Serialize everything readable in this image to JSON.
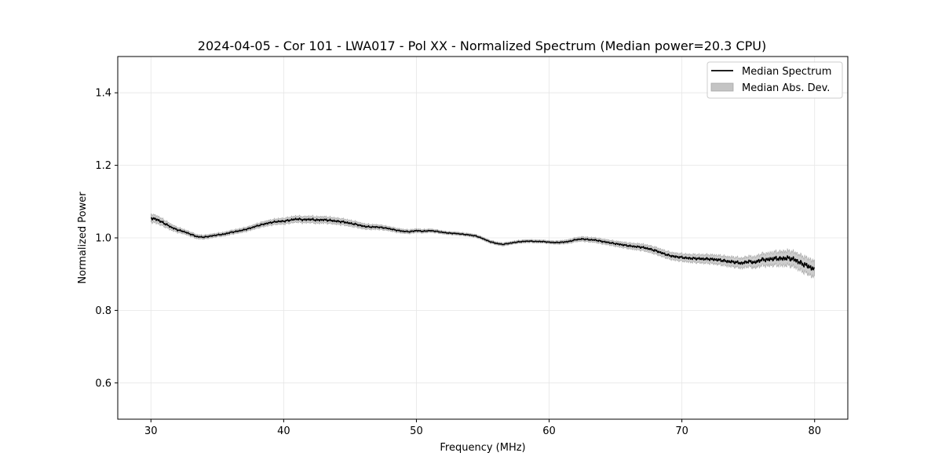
{
  "chart_data": {
    "type": "line",
    "title": "2024-04-05 - Cor 101 - LWA017 - Pol XX - Normalized Spectrum (Median power=20.3 CPU)",
    "xlabel": "Frequency (MHz)",
    "ylabel": "Normalized Power",
    "xlim": [
      27.5,
      82.5
    ],
    "ylim": [
      0.5,
      1.5
    ],
    "xticks": [
      30,
      40,
      50,
      60,
      70,
      80
    ],
    "xtick_labels": [
      "30",
      "40",
      "50",
      "60",
      "70",
      "80"
    ],
    "yticks": [
      0.6,
      0.8,
      1.0,
      1.2,
      1.4
    ],
    "ytick_labels": [
      "0.6",
      "0.8",
      "1.0",
      "1.2",
      "1.4"
    ],
    "grid": true,
    "legend_position": "top-right",
    "legend": [
      "Median Spectrum",
      "Median Abs. Dev."
    ],
    "series": [
      {
        "name": "Median Spectrum",
        "color": "#000000",
        "x": [
          30,
          30.5,
          31,
          31.5,
          32,
          32.5,
          33,
          33.5,
          34,
          34.5,
          35,
          35.5,
          36,
          36.5,
          37,
          37.5,
          38,
          38.5,
          39,
          39.5,
          40,
          40.5,
          41,
          41.5,
          42,
          42.5,
          43,
          43.5,
          44,
          44.5,
          45,
          45.5,
          46,
          46.5,
          47,
          47.5,
          48,
          48.5,
          49,
          49.5,
          50,
          50.5,
          51,
          51.5,
          52,
          52.5,
          53,
          53.5,
          54,
          54.5,
          55,
          55.5,
          56,
          56.5,
          57,
          57.5,
          58,
          58.5,
          59,
          59.5,
          60,
          60.5,
          61,
          61.5,
          62,
          62.5,
          63,
          63.5,
          64,
          64.5,
          65,
          65.5,
          66,
          66.5,
          67,
          67.5,
          68,
          68.5,
          69,
          69.5,
          70,
          70.5,
          71,
          71.5,
          72,
          72.5,
          73,
          73.5,
          74,
          74.5,
          75,
          75.5,
          76,
          76.5,
          77,
          77.5,
          78,
          78.5,
          79,
          79.5,
          80
        ],
        "y": [
          1.055,
          1.05,
          1.04,
          1.03,
          1.022,
          1.017,
          1.01,
          1.003,
          1.002,
          1.005,
          1.008,
          1.01,
          1.015,
          1.018,
          1.022,
          1.027,
          1.033,
          1.038,
          1.042,
          1.045,
          1.046,
          1.049,
          1.052,
          1.05,
          1.051,
          1.049,
          1.05,
          1.048,
          1.046,
          1.044,
          1.04,
          1.037,
          1.032,
          1.03,
          1.03,
          1.028,
          1.025,
          1.021,
          1.018,
          1.017,
          1.02,
          1.018,
          1.02,
          1.018,
          1.015,
          1.013,
          1.012,
          1.01,
          1.008,
          1.005,
          0.998,
          0.99,
          0.985,
          0.982,
          0.985,
          0.988,
          0.99,
          0.991,
          0.99,
          0.99,
          0.988,
          0.987,
          0.988,
          0.99,
          0.995,
          0.997,
          0.995,
          0.994,
          0.99,
          0.987,
          0.984,
          0.981,
          0.978,
          0.976,
          0.974,
          0.97,
          0.965,
          0.958,
          0.952,
          0.948,
          0.946,
          0.944,
          0.943,
          0.942,
          0.942,
          0.94,
          0.938,
          0.935,
          0.933,
          0.93,
          0.935,
          0.932,
          0.94,
          0.94,
          0.943,
          0.943,
          0.944,
          0.94,
          0.93,
          0.922,
          0.912
        ]
      },
      {
        "name": "Median Abs. Dev.",
        "color": "#c4c4c4",
        "x": [
          30,
          32.5,
          35,
          37.5,
          40,
          42.5,
          45,
          47.5,
          50,
          52.5,
          55,
          57.5,
          60,
          62.5,
          65,
          67.5,
          70,
          72.5,
          75,
          77.5,
          80
        ],
        "y_half_width": [
          0.011,
          0.006,
          0.005,
          0.006,
          0.008,
          0.009,
          0.008,
          0.006,
          0.005,
          0.004,
          0.004,
          0.004,
          0.004,
          0.006,
          0.007,
          0.009,
          0.01,
          0.012,
          0.014,
          0.019,
          0.022
        ]
      }
    ]
  }
}
